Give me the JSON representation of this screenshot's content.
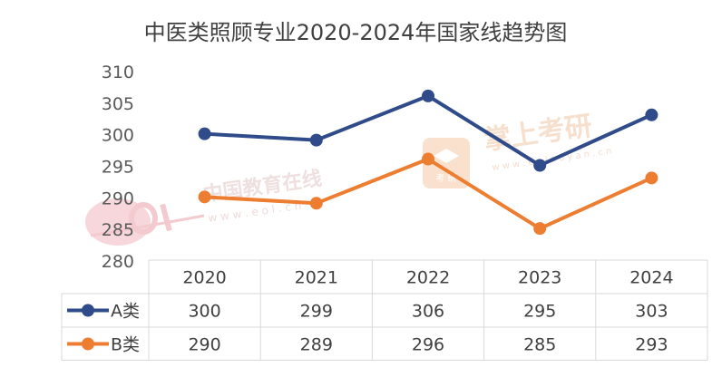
{
  "chart_data": {
    "type": "line",
    "title": "中医类照顾专业2020-2024年国家线趋势图",
    "categories": [
      "2020",
      "2021",
      "2022",
      "2023",
      "2024"
    ],
    "series": [
      {
        "name": "A类",
        "values": [
          300,
          299,
          306,
          295,
          303
        ],
        "color": "#2f4b8a"
      },
      {
        "name": "B类",
        "values": [
          290,
          289,
          296,
          285,
          293
        ],
        "color": "#ed7d31"
      }
    ],
    "y_ticks": [
      "310",
      "305",
      "300",
      "295",
      "290",
      "285",
      "280"
    ],
    "ylim": [
      280,
      310
    ],
    "xlabel": "",
    "ylabel": "",
    "grid": false,
    "legend": "data-table",
    "data_table": {
      "rows": [
        {
          "label": "A类",
          "cells": [
            "300",
            "299",
            "306",
            "295",
            "303"
          ]
        },
        {
          "label": "B类",
          "cells": [
            "290",
            "289",
            "296",
            "285",
            "293"
          ]
        }
      ]
    }
  },
  "watermarks": {
    "eol_text": "中国教育在线",
    "eol_url": "w w w . e o l . c n",
    "zsky_text": "掌上考研",
    "zsky_badge": "考 研",
    "zsky_url": "w w w . e o l a o y a n . c n"
  }
}
